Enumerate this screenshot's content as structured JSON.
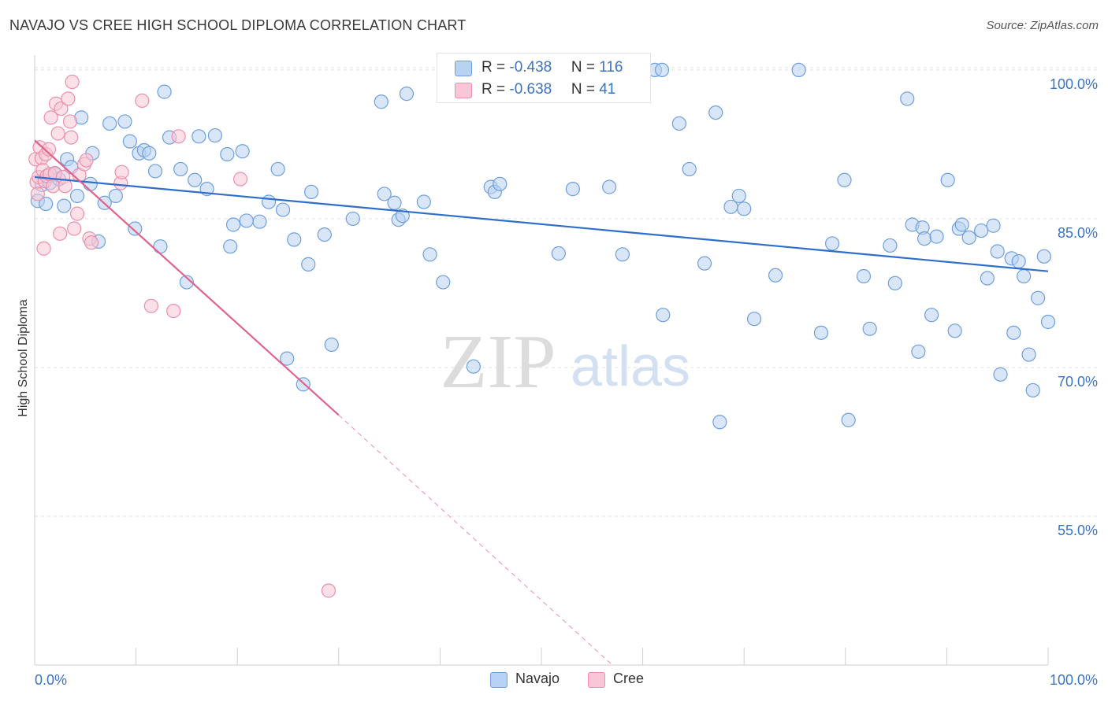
{
  "header": {
    "title": "NAVAJO VS CREE HIGH SCHOOL DIPLOMA CORRELATION CHART",
    "source": "Source: ZipAtlas.com"
  },
  "watermark": {
    "zip": "ZIP",
    "atlas": "atlas"
  },
  "legend_top": {
    "navajo": {
      "r_label": "R = ",
      "r_value": "-0.438",
      "n_label": "N = ",
      "n_value": "116"
    },
    "cree": {
      "r_label": "R = ",
      "r_value": "-0.638",
      "n_label": "N = ",
      "n_value": "41"
    }
  },
  "legend_bottom": {
    "navajo": "Navajo",
    "cree": "Cree"
  },
  "colors": {
    "navajo_fill": "#b8d2f3",
    "navajo_stroke": "#6f9fdd",
    "navajo_line": "#2f6fc9",
    "cree_fill": "#f8c6d6",
    "cree_stroke": "#ec8fab",
    "cree_line": "#e0638c",
    "axis_label": "#3b73c4",
    "grid": "#e2e2e2"
  },
  "chart_data": {
    "type": "scatter",
    "title": "NAVAJO VS CREE HIGH SCHOOL DIPLOMA CORRELATION CHART",
    "xlabel": "",
    "ylabel": "High School Diploma",
    "xlim": [
      0,
      100
    ],
    "ylim": [
      40,
      101.5
    ],
    "x_tick_labels": [
      "0.0%",
      "100.0%"
    ],
    "y_ticks": [
      55,
      70,
      85,
      100
    ],
    "y_tick_labels": [
      "55.0%",
      "70.0%",
      "85.0%",
      "100.0%"
    ],
    "grid": true,
    "legend_position": "top-center",
    "series": [
      {
        "name": "Navajo",
        "r": -0.438,
        "n": 116,
        "trend": {
          "x": [
            0,
            100
          ],
          "y": [
            89.2,
            79.7
          ]
        },
        "points": [
          [
            0.3,
            86.8
          ],
          [
            0.7,
            88.4
          ],
          [
            1.1,
            86.5
          ],
          [
            1.5,
            88.6
          ],
          [
            2.0,
            89.5
          ],
          [
            2.4,
            89.0
          ],
          [
            2.9,
            86.3
          ],
          [
            3.2,
            91.0
          ],
          [
            3.6,
            90.2
          ],
          [
            4.2,
            87.3
          ],
          [
            4.6,
            95.2
          ],
          [
            5.5,
            88.5
          ],
          [
            5.7,
            91.6
          ],
          [
            6.3,
            82.7
          ],
          [
            6.9,
            86.6
          ],
          [
            7.4,
            94.6
          ],
          [
            8.0,
            87.3
          ],
          [
            8.9,
            94.8
          ],
          [
            9.4,
            92.8
          ],
          [
            9.9,
            84.0
          ],
          [
            10.3,
            91.6
          ],
          [
            10.8,
            91.9
          ],
          [
            11.3,
            91.6
          ],
          [
            11.9,
            89.8
          ],
          [
            12.4,
            82.2
          ],
          [
            12.8,
            97.8
          ],
          [
            13.3,
            93.2
          ],
          [
            14.4,
            90.0
          ],
          [
            15.0,
            78.6
          ],
          [
            15.8,
            88.9
          ],
          [
            16.2,
            93.3
          ],
          [
            17.0,
            88.0
          ],
          [
            17.8,
            93.4
          ],
          [
            19.0,
            91.5
          ],
          [
            19.3,
            82.2
          ],
          [
            19.6,
            84.4
          ],
          [
            20.5,
            91.8
          ],
          [
            20.9,
            84.8
          ],
          [
            22.2,
            84.7
          ],
          [
            23.1,
            86.7
          ],
          [
            24.0,
            90.0
          ],
          [
            24.5,
            85.9
          ],
          [
            24.9,
            70.9
          ],
          [
            25.6,
            82.9
          ],
          [
            26.5,
            68.3
          ],
          [
            27.0,
            80.4
          ],
          [
            27.3,
            87.7
          ],
          [
            28.6,
            83.4
          ],
          [
            29.3,
            72.3
          ],
          [
            31.4,
            85.0
          ],
          [
            34.2,
            96.8
          ],
          [
            34.5,
            87.5
          ],
          [
            35.5,
            86.6
          ],
          [
            35.9,
            84.9
          ],
          [
            36.3,
            85.3
          ],
          [
            36.7,
            97.6
          ],
          [
            38.4,
            86.7
          ],
          [
            39.0,
            81.4
          ],
          [
            40.3,
            78.6
          ],
          [
            43.3,
            70.1
          ],
          [
            45.0,
            88.2
          ],
          [
            45.4,
            87.7
          ],
          [
            45.9,
            88.5
          ],
          [
            51.7,
            81.5
          ],
          [
            53.1,
            88.0
          ],
          [
            53.6,
            100.0
          ],
          [
            56.7,
            88.2
          ],
          [
            58.0,
            81.4
          ],
          [
            61.2,
            100.0
          ],
          [
            61.9,
            100.0
          ],
          [
            62.0,
            75.3
          ],
          [
            63.6,
            94.6
          ],
          [
            64.6,
            90.0
          ],
          [
            66.1,
            80.5
          ],
          [
            67.2,
            95.7
          ],
          [
            67.6,
            64.5
          ],
          [
            68.7,
            86.2
          ],
          [
            69.5,
            87.3
          ],
          [
            70.0,
            86.0
          ],
          [
            71.0,
            74.9
          ],
          [
            73.1,
            79.3
          ],
          [
            75.4,
            100.0
          ],
          [
            77.6,
            73.5
          ],
          [
            78.7,
            82.5
          ],
          [
            79.9,
            88.9
          ],
          [
            80.3,
            64.7
          ],
          [
            81.8,
            79.2
          ],
          [
            82.4,
            73.9
          ],
          [
            84.4,
            82.3
          ],
          [
            84.9,
            78.5
          ],
          [
            86.1,
            97.1
          ],
          [
            86.6,
            84.4
          ],
          [
            87.2,
            71.6
          ],
          [
            87.6,
            84.1
          ],
          [
            87.8,
            83.0
          ],
          [
            88.5,
            75.3
          ],
          [
            89.0,
            83.2
          ],
          [
            90.1,
            88.9
          ],
          [
            90.8,
            73.7
          ],
          [
            91.2,
            84.0
          ],
          [
            91.5,
            84.4
          ],
          [
            92.2,
            83.1
          ],
          [
            93.4,
            83.8
          ],
          [
            94.0,
            79.0
          ],
          [
            94.6,
            84.3
          ],
          [
            95.0,
            81.7
          ],
          [
            95.3,
            69.3
          ],
          [
            96.4,
            81.0
          ],
          [
            96.6,
            73.5
          ],
          [
            97.1,
            80.7
          ],
          [
            97.6,
            79.2
          ],
          [
            98.1,
            71.3
          ],
          [
            98.5,
            67.7
          ],
          [
            99.0,
            77.0
          ],
          [
            99.6,
            81.2
          ],
          [
            100.0,
            74.6
          ]
        ]
      },
      {
        "name": "Cree",
        "r": -0.638,
        "n": 41,
        "trend": {
          "x": [
            0,
            30
          ],
          "y": [
            92.9,
            65.2
          ]
        },
        "trend_dashed": {
          "x": [
            30,
            57
          ],
          "y": [
            65.2,
            40.0
          ]
        },
        "points": [
          [
            0.1,
            91.0
          ],
          [
            0.2,
            88.7
          ],
          [
            0.3,
            87.5
          ],
          [
            0.4,
            89.2
          ],
          [
            0.5,
            92.2
          ],
          [
            0.7,
            91.1
          ],
          [
            0.8,
            89.9
          ],
          [
            0.9,
            82.0
          ],
          [
            1.0,
            88.8
          ],
          [
            1.1,
            91.5
          ],
          [
            1.2,
            89.3
          ],
          [
            1.4,
            92.0
          ],
          [
            1.5,
            89.5
          ],
          [
            1.6,
            95.2
          ],
          [
            1.8,
            88.3
          ],
          [
            2.0,
            89.6
          ],
          [
            2.1,
            96.6
          ],
          [
            2.3,
            93.6
          ],
          [
            2.5,
            83.5
          ],
          [
            2.6,
            96.1
          ],
          [
            2.8,
            89.2
          ],
          [
            3.0,
            88.3
          ],
          [
            3.3,
            97.1
          ],
          [
            3.5,
            94.8
          ],
          [
            3.6,
            93.2
          ],
          [
            3.7,
            98.8
          ],
          [
            3.9,
            84.0
          ],
          [
            4.2,
            85.5
          ],
          [
            4.4,
            89.4
          ],
          [
            4.9,
            90.5
          ],
          [
            5.1,
            90.9
          ],
          [
            5.4,
            83.0
          ],
          [
            5.6,
            82.6
          ],
          [
            8.5,
            88.6
          ],
          [
            8.6,
            89.7
          ],
          [
            10.6,
            96.9
          ],
          [
            11.5,
            76.2
          ],
          [
            13.7,
            75.7
          ],
          [
            14.2,
            93.3
          ],
          [
            20.3,
            89.0
          ],
          [
            29.0,
            47.5
          ]
        ]
      }
    ]
  }
}
